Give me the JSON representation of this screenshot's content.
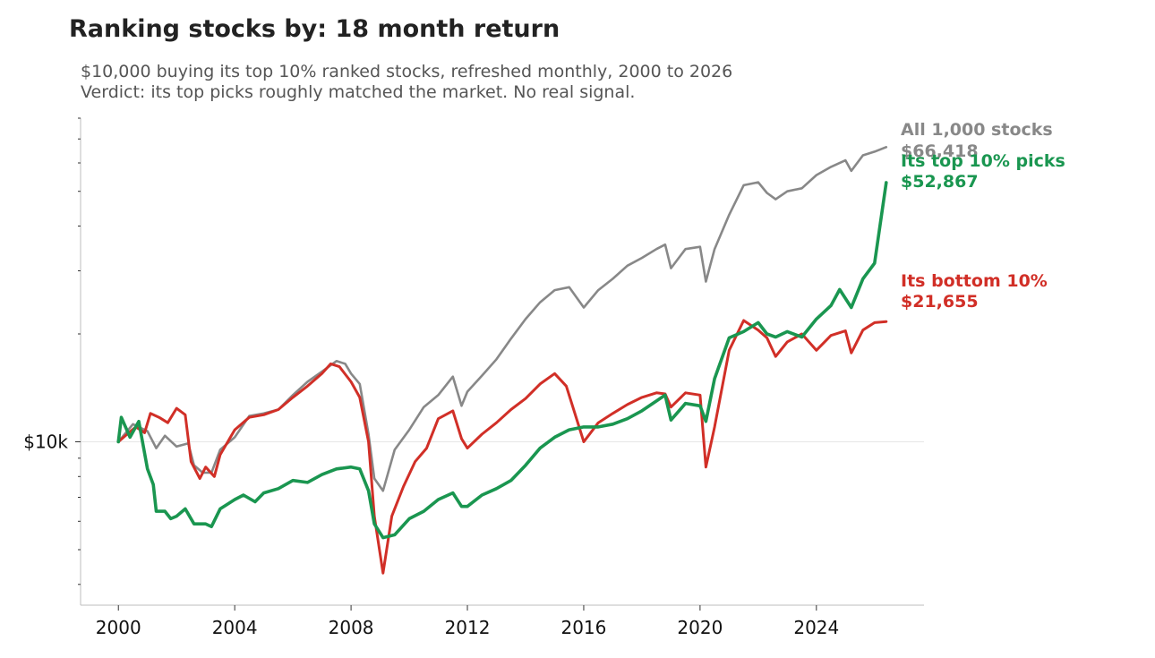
{
  "title": "Ranking stocks by: 18 month return",
  "subtitle": {
    "line1": "$10,000 buying its top 10% ranked stocks, refreshed monthly, 2000 to 2026",
    "line2": "Verdict: its top picks roughly matched the market. No real signal."
  },
  "chart_data": {
    "type": "line",
    "title": "Ranking stocks by: 18 month return",
    "xlabel": "",
    "ylabel": "",
    "y_scale": "log",
    "x_ticks": [
      2000,
      2004,
      2008,
      2012,
      2016,
      2020,
      2024
    ],
    "x_tick_labels": [
      "2000",
      "2004",
      "2008",
      "2012",
      "2016",
      "2020",
      "2024"
    ],
    "y_ticks": [
      10000
    ],
    "y_tick_labels": [
      "$10k"
    ],
    "xlim": [
      1998.7,
      2027.7
    ],
    "ylim": [
      3500,
      80000
    ],
    "grid": "horizontal line at $10k",
    "legend": "end-of-line labels",
    "series": [
      {
        "name": "All 1,000 stocks",
        "end_value_label": "$66,418",
        "color": "#888888",
        "points": [
          [
            2000.0,
            10000
          ],
          [
            2000.5,
            11200
          ],
          [
            2001.0,
            10700
          ],
          [
            2001.3,
            9600
          ],
          [
            2001.6,
            10400
          ],
          [
            2002.0,
            9700
          ],
          [
            2002.4,
            9900
          ],
          [
            2002.6,
            8600
          ],
          [
            2002.9,
            8200
          ],
          [
            2003.2,
            8200
          ],
          [
            2003.5,
            9500
          ],
          [
            2004.0,
            10300
          ],
          [
            2004.5,
            11800
          ],
          [
            2005.0,
            12000
          ],
          [
            2005.5,
            12300
          ],
          [
            2006.0,
            13500
          ],
          [
            2006.5,
            14700
          ],
          [
            2007.0,
            15700
          ],
          [
            2007.5,
            16800
          ],
          [
            2007.8,
            16500
          ],
          [
            2008.0,
            15500
          ],
          [
            2008.3,
            14500
          ],
          [
            2008.6,
            10500
          ],
          [
            2008.8,
            7900
          ],
          [
            2009.1,
            7300
          ],
          [
            2009.5,
            9500
          ],
          [
            2010.0,
            10800
          ],
          [
            2010.5,
            12500
          ],
          [
            2011.0,
            13500
          ],
          [
            2011.5,
            15200
          ],
          [
            2011.8,
            12600
          ],
          [
            2012.0,
            13800
          ],
          [
            2012.5,
            15300
          ],
          [
            2013.0,
            17000
          ],
          [
            2013.5,
            19400
          ],
          [
            2014.0,
            22000
          ],
          [
            2014.5,
            24500
          ],
          [
            2015.0,
            26500
          ],
          [
            2015.5,
            27000
          ],
          [
            2016.0,
            23700
          ],
          [
            2016.5,
            26500
          ],
          [
            2017.0,
            28500
          ],
          [
            2017.5,
            31000
          ],
          [
            2018.0,
            32600
          ],
          [
            2018.5,
            34500
          ],
          [
            2018.8,
            35500
          ],
          [
            2019.0,
            30500
          ],
          [
            2019.5,
            34500
          ],
          [
            2020.0,
            35000
          ],
          [
            2020.2,
            28000
          ],
          [
            2020.5,
            34500
          ],
          [
            2021.0,
            43000
          ],
          [
            2021.5,
            52000
          ],
          [
            2022.0,
            53000
          ],
          [
            2022.3,
            49500
          ],
          [
            2022.6,
            47500
          ],
          [
            2023.0,
            50000
          ],
          [
            2023.5,
            51000
          ],
          [
            2024.0,
            55500
          ],
          [
            2024.5,
            58500
          ],
          [
            2025.0,
            61000
          ],
          [
            2025.2,
            57000
          ],
          [
            2025.6,
            63000
          ],
          [
            2026.0,
            64500
          ],
          [
            2026.4,
            66418
          ]
        ]
      },
      {
        "name": "Its top 10% picks",
        "end_value_label": "$52,867",
        "color": "#1a9650",
        "points": [
          [
            2000.0,
            10000
          ],
          [
            2000.1,
            11700
          ],
          [
            2000.4,
            10300
          ],
          [
            2000.7,
            11400
          ],
          [
            2001.0,
            8400
          ],
          [
            2001.2,
            7600
          ],
          [
            2001.3,
            6400
          ],
          [
            2001.6,
            6400
          ],
          [
            2001.8,
            6100
          ],
          [
            2002.0,
            6200
          ],
          [
            2002.3,
            6500
          ],
          [
            2002.6,
            5900
          ],
          [
            2003.0,
            5900
          ],
          [
            2003.2,
            5800
          ],
          [
            2003.5,
            6500
          ],
          [
            2004.0,
            6900
          ],
          [
            2004.3,
            7100
          ],
          [
            2004.7,
            6800
          ],
          [
            2005.0,
            7200
          ],
          [
            2005.5,
            7400
          ],
          [
            2006.0,
            7800
          ],
          [
            2006.5,
            7700
          ],
          [
            2007.0,
            8100
          ],
          [
            2007.5,
            8400
          ],
          [
            2008.0,
            8500
          ],
          [
            2008.3,
            8400
          ],
          [
            2008.6,
            7300
          ],
          [
            2008.8,
            5900
          ],
          [
            2009.1,
            5400
          ],
          [
            2009.5,
            5500
          ],
          [
            2010.0,
            6100
          ],
          [
            2010.5,
            6400
          ],
          [
            2011.0,
            6900
          ],
          [
            2011.5,
            7200
          ],
          [
            2011.8,
            6600
          ],
          [
            2012.0,
            6600
          ],
          [
            2012.5,
            7100
          ],
          [
            2013.0,
            7400
          ],
          [
            2013.5,
            7800
          ],
          [
            2014.0,
            8600
          ],
          [
            2014.5,
            9600
          ],
          [
            2015.0,
            10300
          ],
          [
            2015.5,
            10800
          ],
          [
            2016.0,
            11000
          ],
          [
            2016.5,
            11000
          ],
          [
            2017.0,
            11200
          ],
          [
            2017.5,
            11600
          ],
          [
            2018.0,
            12200
          ],
          [
            2018.5,
            13000
          ],
          [
            2018.8,
            13500
          ],
          [
            2019.0,
            11500
          ],
          [
            2019.5,
            12800
          ],
          [
            2020.0,
            12600
          ],
          [
            2020.2,
            11400
          ],
          [
            2020.5,
            15000
          ],
          [
            2021.0,
            19500
          ],
          [
            2021.5,
            20300
          ],
          [
            2022.0,
            21500
          ],
          [
            2022.3,
            20000
          ],
          [
            2022.6,
            19600
          ],
          [
            2023.0,
            20300
          ],
          [
            2023.5,
            19600
          ],
          [
            2024.0,
            22000
          ],
          [
            2024.5,
            24000
          ],
          [
            2024.8,
            26600
          ],
          [
            2025.2,
            23700
          ],
          [
            2025.6,
            28500
          ],
          [
            2026.0,
            31500
          ],
          [
            2026.4,
            52867
          ]
        ]
      },
      {
        "name": "Its bottom 10%",
        "end_value_label": "$21,655",
        "color": "#d12f27",
        "points": [
          [
            2000.0,
            10000
          ],
          [
            2000.3,
            10500
          ],
          [
            2000.6,
            11000
          ],
          [
            2000.9,
            10600
          ],
          [
            2001.1,
            12000
          ],
          [
            2001.4,
            11700
          ],
          [
            2001.7,
            11300
          ],
          [
            2002.0,
            12400
          ],
          [
            2002.3,
            11900
          ],
          [
            2002.5,
            8800
          ],
          [
            2002.8,
            7900
          ],
          [
            2003.0,
            8500
          ],
          [
            2003.3,
            8000
          ],
          [
            2003.5,
            9200
          ],
          [
            2004.0,
            10800
          ],
          [
            2004.5,
            11700
          ],
          [
            2005.0,
            11900
          ],
          [
            2005.5,
            12300
          ],
          [
            2006.0,
            13300
          ],
          [
            2006.5,
            14300
          ],
          [
            2007.0,
            15500
          ],
          [
            2007.3,
            16500
          ],
          [
            2007.6,
            16200
          ],
          [
            2008.0,
            14700
          ],
          [
            2008.3,
            13300
          ],
          [
            2008.6,
            10000
          ],
          [
            2008.8,
            6200
          ],
          [
            2009.1,
            4300
          ],
          [
            2009.4,
            6200
          ],
          [
            2009.8,
            7500
          ],
          [
            2010.2,
            8800
          ],
          [
            2010.6,
            9600
          ],
          [
            2011.0,
            11600
          ],
          [
            2011.5,
            12200
          ],
          [
            2011.8,
            10200
          ],
          [
            2012.0,
            9600
          ],
          [
            2012.5,
            10500
          ],
          [
            2013.0,
            11300
          ],
          [
            2013.5,
            12300
          ],
          [
            2014.0,
            13200
          ],
          [
            2014.5,
            14500
          ],
          [
            2015.0,
            15500
          ],
          [
            2015.4,
            14300
          ],
          [
            2016.0,
            10000
          ],
          [
            2016.5,
            11300
          ],
          [
            2017.0,
            12000
          ],
          [
            2017.5,
            12700
          ],
          [
            2018.0,
            13300
          ],
          [
            2018.5,
            13700
          ],
          [
            2018.8,
            13600
          ],
          [
            2019.0,
            12500
          ],
          [
            2019.5,
            13700
          ],
          [
            2020.0,
            13500
          ],
          [
            2020.2,
            8500
          ],
          [
            2020.5,
            11000
          ],
          [
            2021.0,
            18000
          ],
          [
            2021.5,
            21800
          ],
          [
            2022.0,
            20500
          ],
          [
            2022.3,
            19500
          ],
          [
            2022.6,
            17300
          ],
          [
            2023.0,
            19000
          ],
          [
            2023.5,
            20000
          ],
          [
            2024.0,
            18000
          ],
          [
            2024.5,
            19800
          ],
          [
            2025.0,
            20400
          ],
          [
            2025.2,
            17700
          ],
          [
            2025.6,
            20500
          ],
          [
            2026.0,
            21500
          ],
          [
            2026.4,
            21655
          ]
        ]
      }
    ]
  }
}
